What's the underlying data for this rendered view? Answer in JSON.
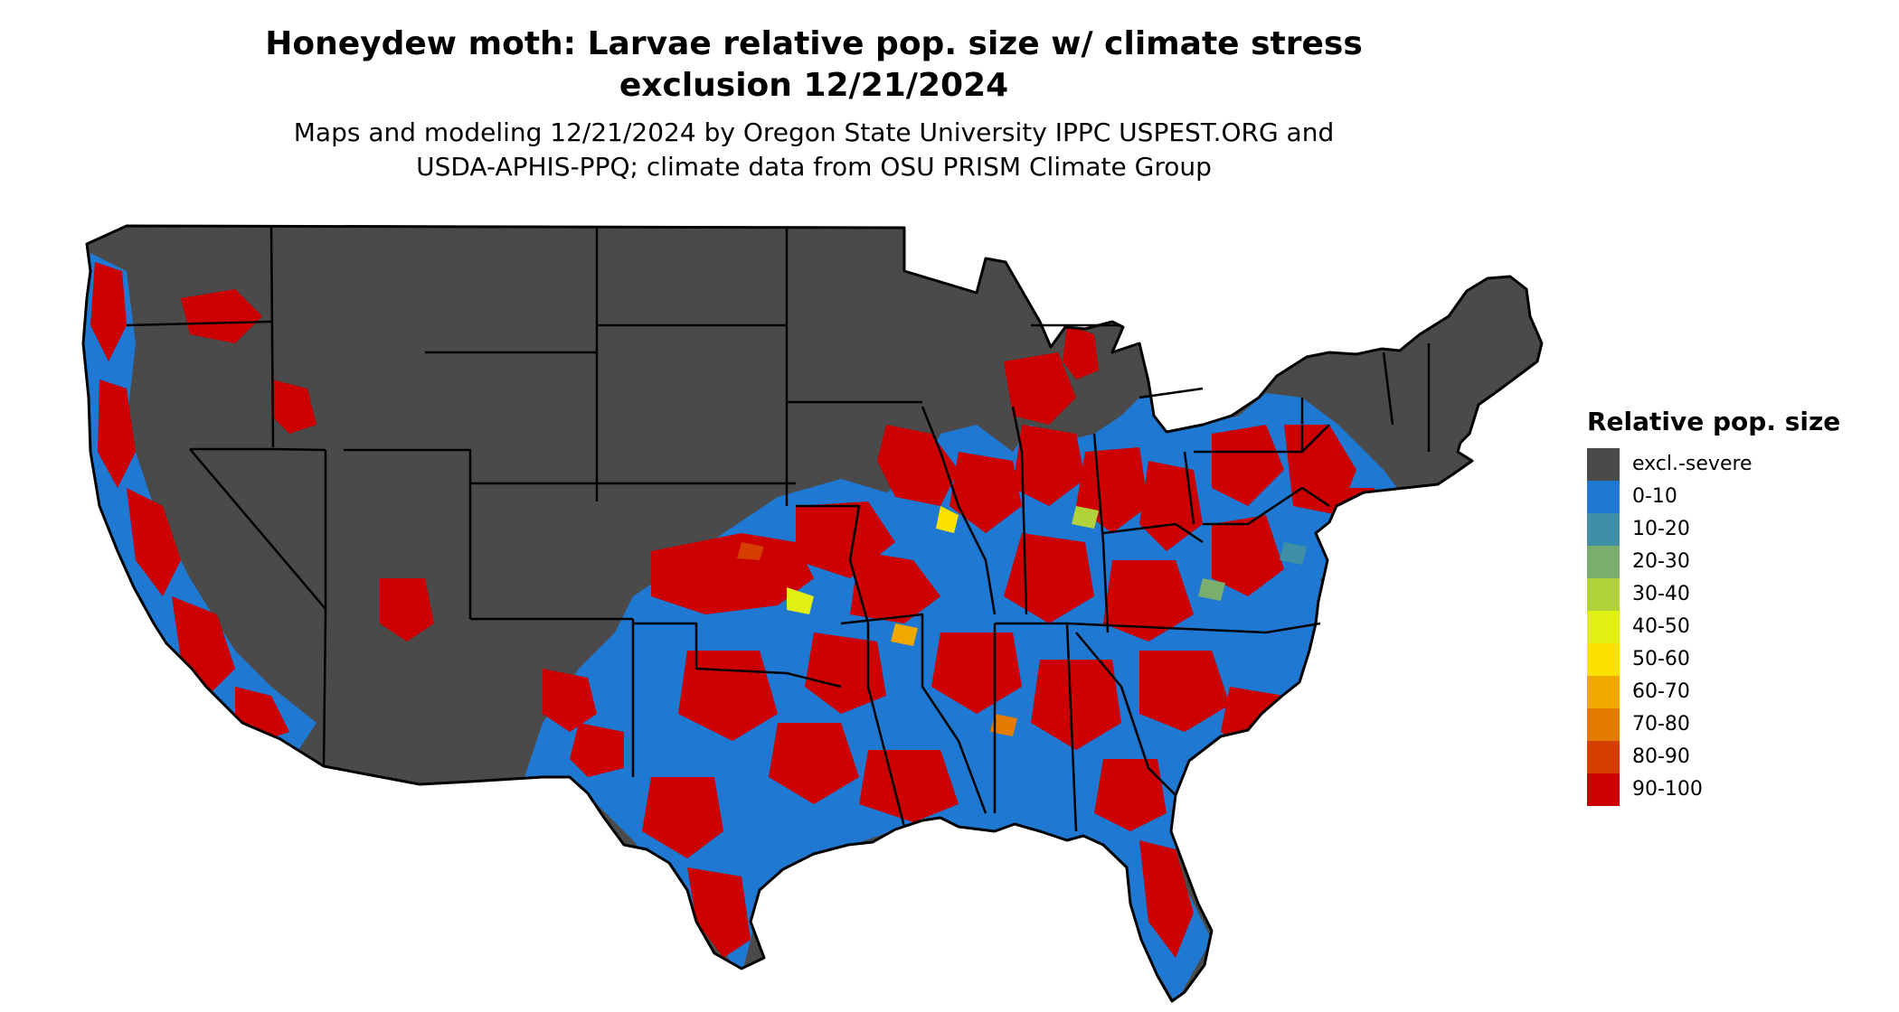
{
  "map": {
    "title_line1": "Honeydew moth: Larvae relative pop. size w/ climate stress",
    "title_line2": "exclusion 12/21/2024",
    "subtitle_line1": "Maps and modeling 12/21/2024 by Oregon State University IPPC USPEST.ORG and",
    "subtitle_line2": "USDA-APHIS-PPQ; climate data from OSU PRISM Climate Group",
    "region_shown": "contiguous United States",
    "colors": {
      "excluded": "#4a4a4a",
      "background": "#ffffff",
      "state_border": "#000000"
    }
  },
  "legend": {
    "title": "Relative pop. size",
    "items": [
      {
        "label": "excl.-severe",
        "color": "#4a4a4a"
      },
      {
        "label": "0-10",
        "color": "#1f78d1"
      },
      {
        "label": "10-20",
        "color": "#3f8fa6"
      },
      {
        "label": "20-30",
        "color": "#7aad6e"
      },
      {
        "label": "30-40",
        "color": "#b2d23b"
      },
      {
        "label": "40-50",
        "color": "#e2ef12"
      },
      {
        "label": "50-60",
        "color": "#fbe100"
      },
      {
        "label": "60-70",
        "color": "#f0a800"
      },
      {
        "label": "70-80",
        "color": "#e57a00"
      },
      {
        "label": "80-90",
        "color": "#d63e00"
      },
      {
        "label": "90-100",
        "color": "#cc0000"
      }
    ]
  }
}
